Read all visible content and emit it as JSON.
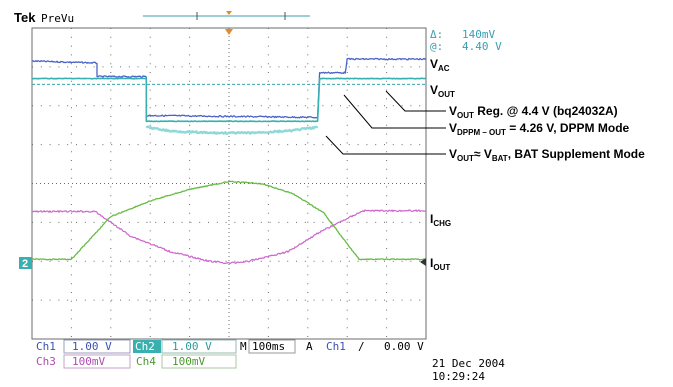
{
  "header": {
    "brand": "Tek",
    "mode": "PreVu"
  },
  "cursor_readout": {
    "delta_symbol": "Δ:",
    "delta_value": "140mV",
    "at_symbol": "@:",
    "at_value": "4.40 V"
  },
  "colors": {
    "ch1": "#4a63c8",
    "ch2": "#38b0b0",
    "ch3": "#cc66cc",
    "ch4": "#66bb44",
    "grid": "#6b6b6b",
    "cursor": "#3aa0b0",
    "trigger": "#e38a2a"
  },
  "annotations": {
    "vac": {
      "main": "V",
      "sub": "AC"
    },
    "vout": {
      "main": "V",
      "sub": "OUT"
    },
    "reg": {
      "main": "V",
      "sub": "OUT",
      "rest": " Reg. @ 4.4 V (bq24032A)"
    },
    "dppm": {
      "main": "V",
      "sub": "DPPM – OUT",
      "rest": " = 4.26 V,  DPPM Mode"
    },
    "bat": {
      "main": "V",
      "sub": "OUT",
      "rest": "≈ V",
      "sub2": "BAT",
      "rest2": ", BAT Supplement Mode"
    },
    "ichg": {
      "main": "I",
      "sub": "CHG"
    },
    "iout": {
      "main": "I",
      "sub": "OUT"
    }
  },
  "ground_marker": "2",
  "channels": [
    {
      "name": "Ch1",
      "scale": "1.00 V"
    },
    {
      "name": "Ch2",
      "scale": "1.00 V"
    },
    {
      "name": "Ch3",
      "scale": "100mV"
    },
    {
      "name": "Ch4",
      "scale": "100mV"
    }
  ],
  "timebase": {
    "label": "M",
    "value": "100ms",
    "trigger_label": "A",
    "trigger_source": "Ch1",
    "trigger_slope": "∕",
    "trigger_level": "0.00 V"
  },
  "timestamp": {
    "date": "21 Dec  2004",
    "time": "10:29:24"
  },
  "chart_data": {
    "type": "line",
    "x_unit": "divisions",
    "xlim": [
      0,
      10
    ],
    "ylim": [
      0,
      8
    ],
    "grid": true,
    "series": [
      {
        "channel": "Ch1",
        "x": [
          0,
          1.65,
          1.65,
          2.9,
          2.9,
          7.25,
          7.3,
          7.95,
          8.0,
          10
        ],
        "y": [
          7.15,
          7.1,
          6.75,
          6.75,
          5.75,
          5.7,
          6.85,
          6.85,
          7.2,
          7.2
        ]
      },
      {
        "channel": "Ch2",
        "x": [
          0,
          2.9,
          2.9,
          7.25,
          7.3,
          10
        ],
        "y": [
          6.7,
          6.7,
          5.6,
          5.6,
          6.7,
          6.7
        ]
      },
      {
        "channel": "Ch2-bat",
        "x": [
          2.9,
          3.5,
          4.5,
          5.5,
          6.5,
          7.25
        ],
        "y": [
          5.45,
          5.35,
          5.3,
          5.3,
          5.35,
          5.45
        ]
      },
      {
        "channel": "Ch3",
        "x": [
          0,
          1.6,
          2.5,
          3.5,
          4.5,
          5.0,
          5.5,
          6.5,
          7.3,
          8.4,
          10
        ],
        "y": [
          3.28,
          3.28,
          2.65,
          2.25,
          2.0,
          1.95,
          2.0,
          2.25,
          2.75,
          3.3,
          3.3
        ]
      },
      {
        "channel": "Ch4",
        "x": [
          0,
          1.0,
          2.0,
          3.0,
          4.0,
          5.0,
          5.8,
          6.6,
          7.4,
          8.3,
          10
        ],
        "y": [
          2.05,
          2.05,
          3.15,
          3.55,
          3.85,
          4.05,
          4.0,
          3.75,
          3.25,
          2.05,
          2.05
        ]
      }
    ]
  }
}
